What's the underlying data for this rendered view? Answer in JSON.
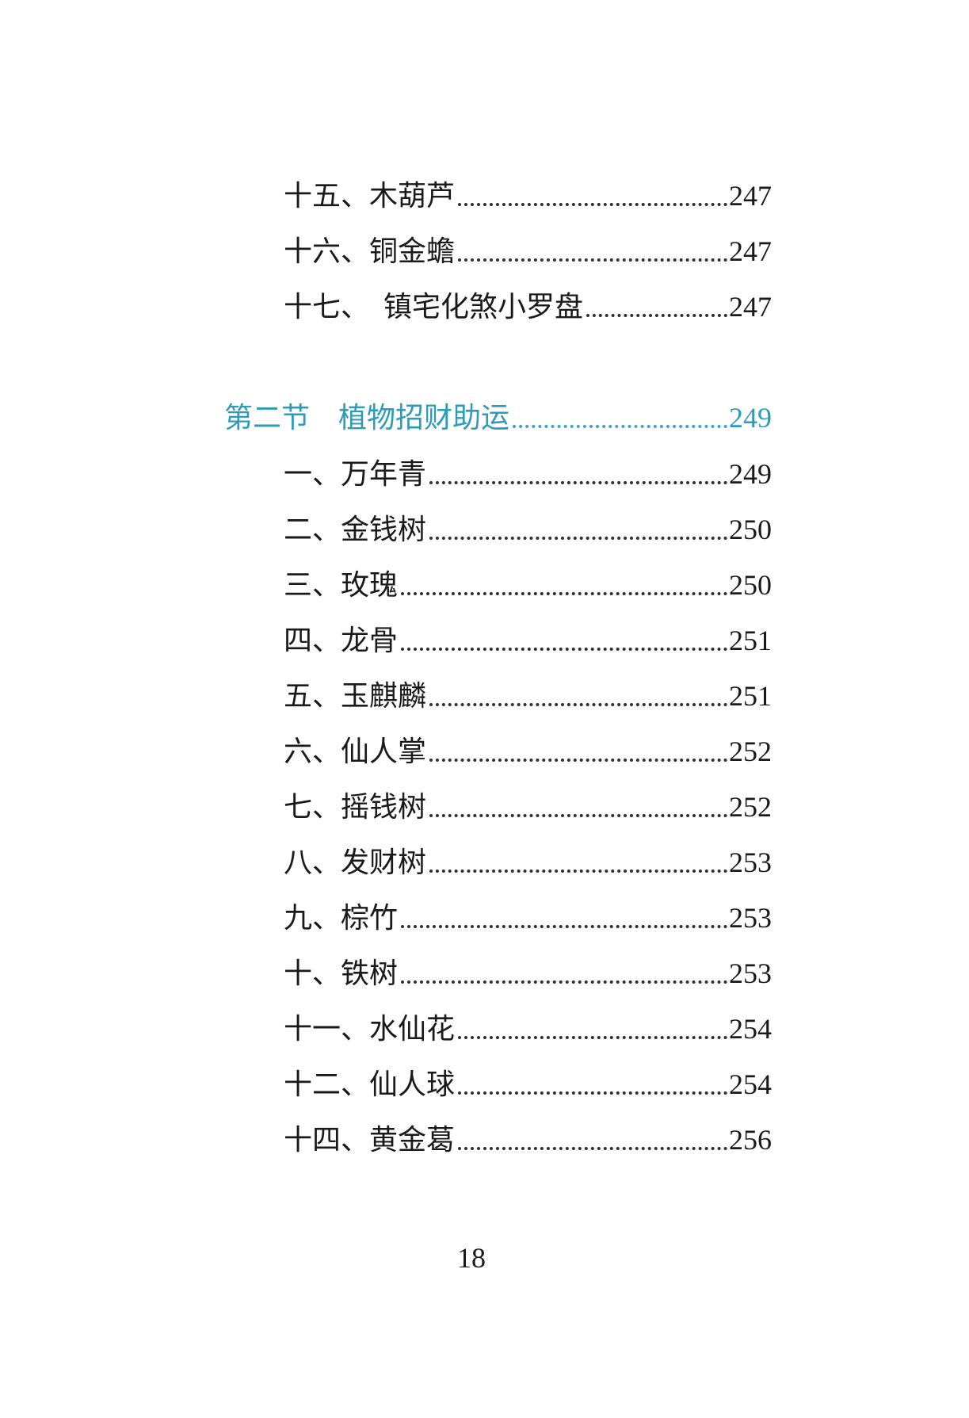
{
  "accent_color": "#2c9cb9",
  "toc": {
    "entries_top": [
      {
        "label": "十五、木葫芦",
        "page": "247"
      },
      {
        "label": "十六、铜金蟾",
        "page": "247"
      },
      {
        "label": "十七、  镇宅化煞小罗盘",
        "page": "247"
      }
    ],
    "section": {
      "label": "第二节    植物招财助运",
      "page": "249"
    },
    "entries": [
      {
        "label": "一、万年青",
        "page": "249"
      },
      {
        "label": "二、金钱树",
        "page": "250"
      },
      {
        "label": "三、玫瑰",
        "page": "250"
      },
      {
        "label": "四、龙骨",
        "page": "251"
      },
      {
        "label": "五、玉麒麟",
        "page": "251"
      },
      {
        "label": "六、仙人掌",
        "page": "252"
      },
      {
        "label": "七、摇钱树",
        "page": "252"
      },
      {
        "label": "八、发财树",
        "page": "253"
      },
      {
        "label": "九、棕竹",
        "page": "253"
      },
      {
        "label": "十、铁树",
        "page": "253"
      },
      {
        "label": "十一、水仙花",
        "page": "254"
      },
      {
        "label": "十二、仙人球",
        "page": "254"
      },
      {
        "label": "十四、黄金葛",
        "page": "256"
      }
    ]
  },
  "page_number": "18"
}
